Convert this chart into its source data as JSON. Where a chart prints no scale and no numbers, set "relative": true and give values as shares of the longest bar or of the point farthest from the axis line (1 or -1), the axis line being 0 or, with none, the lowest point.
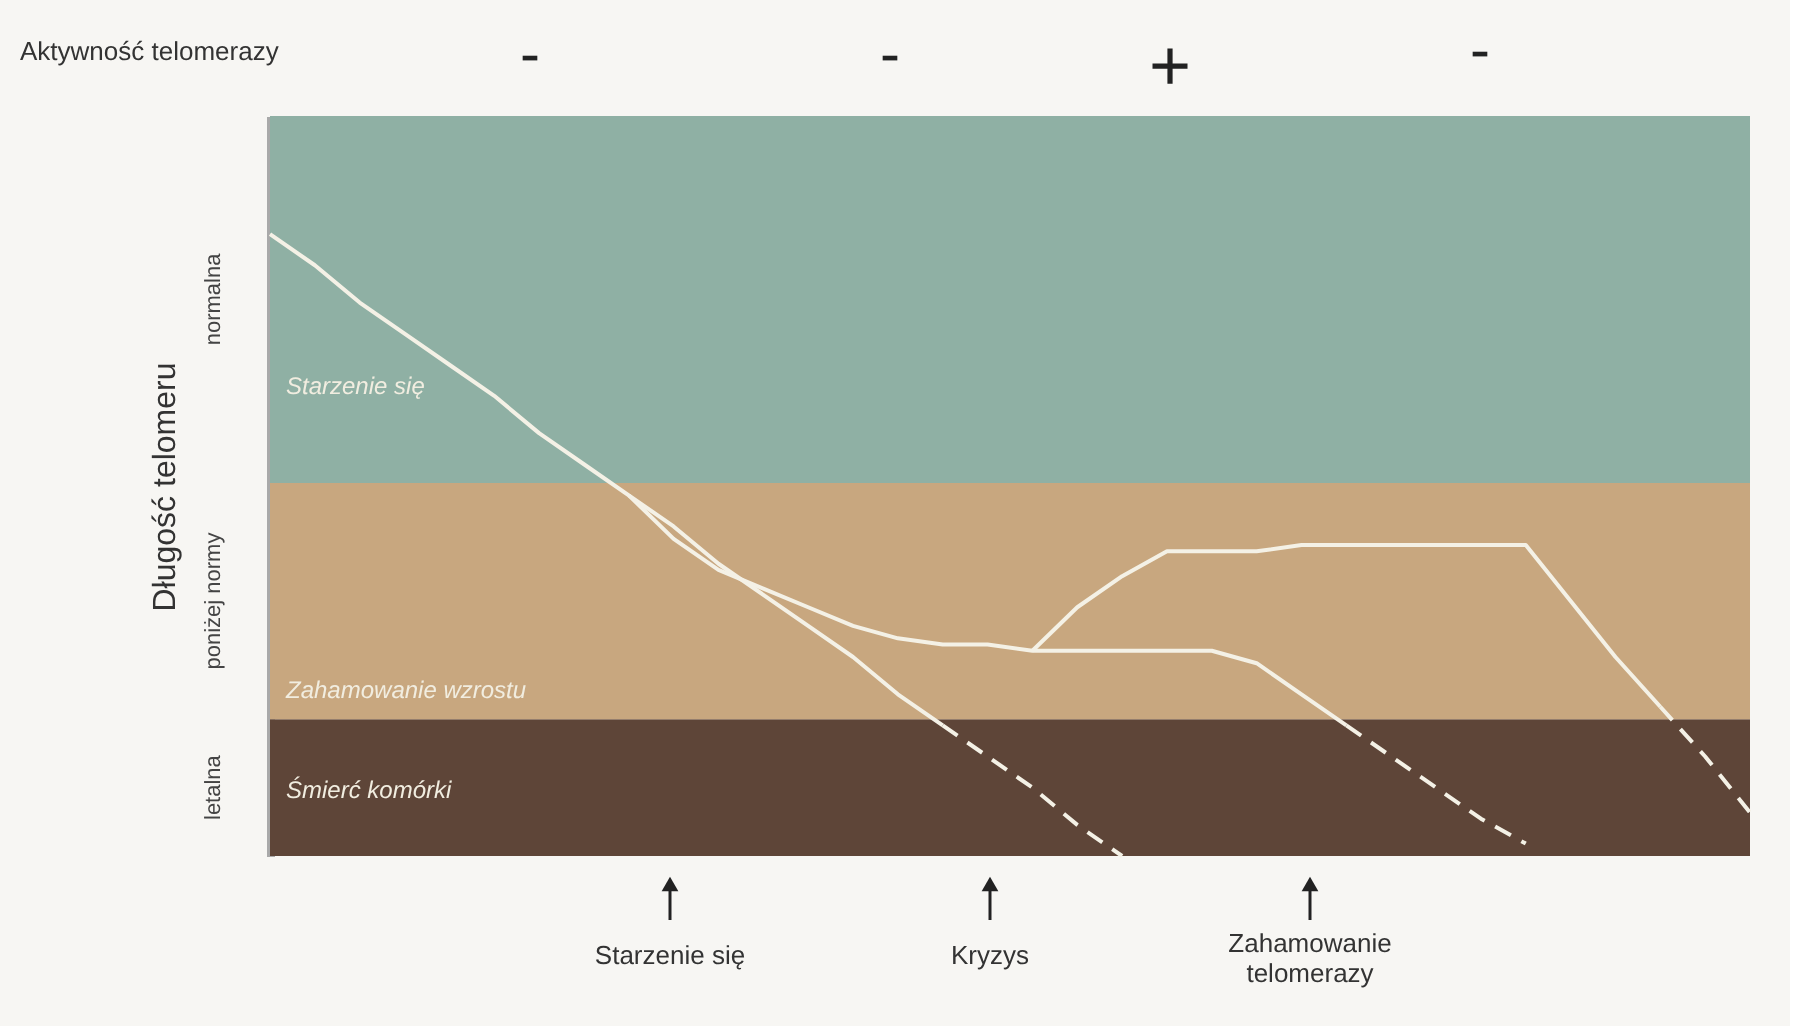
{
  "chart_data": {
    "type": "line",
    "relative": true,
    "ylabel": "Długość telomeru",
    "categories": [
      null,
      null,
      null,
      null,
      null,
      null,
      null,
      null,
      null,
      null,
      null,
      null,
      null,
      null,
      null,
      null,
      null,
      null,
      null,
      null,
      null,
      null,
      null,
      null,
      null,
      null,
      null,
      null,
      null,
      null,
      null,
      null,
      null,
      null
    ],
    "series": [
      {
        "color": "#f4f1e6",
        "line_style": "solid",
        "values": [
          1.0,
          0.95,
          0.89,
          0.84,
          0.79,
          0.74,
          0.68,
          0.63,
          0.58,
          0.53,
          0.47,
          0.42,
          0.37,
          0.32,
          0.26,
          0.21,
          null,
          null,
          null,
          null,
          null,
          null,
          null,
          null,
          null,
          null,
          null,
          null,
          null,
          null,
          null,
          null,
          null,
          null
        ]
      },
      {
        "color": "#f4f1e6",
        "line_style": "dashed",
        "values": [
          null,
          null,
          null,
          null,
          null,
          null,
          null,
          null,
          null,
          null,
          null,
          null,
          null,
          null,
          null,
          0.21,
          0.16,
          0.11,
          0.05,
          0.0,
          null,
          null,
          null,
          null,
          null,
          null,
          null,
          null,
          null,
          null,
          null,
          null,
          null,
          null
        ]
      },
      {
        "color": "#f4f1e6",
        "line_style": "solid",
        "values": [
          null,
          null,
          null,
          null,
          null,
          null,
          null,
          null,
          0.58,
          0.51,
          0.46,
          0.43,
          0.4,
          0.37,
          0.35,
          0.34,
          0.34,
          0.33,
          0.33,
          0.33,
          0.33,
          0.33,
          0.31,
          0.26,
          0.21,
          null,
          null,
          null,
          null,
          null,
          null,
          null,
          null,
          null
        ]
      },
      {
        "color": "#f4f1e6",
        "line_style": "dashed",
        "values": [
          null,
          null,
          null,
          null,
          null,
          null,
          null,
          null,
          null,
          null,
          null,
          null,
          null,
          null,
          null,
          null,
          null,
          null,
          null,
          null,
          null,
          null,
          null,
          null,
          0.21,
          0.16,
          0.11,
          0.06,
          0.02,
          null,
          null,
          null,
          null,
          null
        ]
      },
      {
        "color": "#f4f1e6",
        "line_style": "solid",
        "values": [
          null,
          null,
          null,
          null,
          null,
          null,
          null,
          null,
          null,
          null,
          null,
          null,
          null,
          null,
          null,
          null,
          null,
          0.33,
          0.4,
          0.45,
          0.49,
          0.49,
          0.49,
          0.5,
          0.5,
          0.5,
          0.5,
          0.5,
          0.5,
          0.41,
          0.32,
          0.24,
          null,
          null
        ]
      },
      {
        "color": "#f4f1e6",
        "line_style": "dashed",
        "values": [
          null,
          null,
          null,
          null,
          null,
          null,
          null,
          null,
          null,
          null,
          null,
          null,
          null,
          null,
          null,
          null,
          null,
          null,
          null,
          null,
          null,
          null,
          null,
          null,
          null,
          null,
          null,
          null,
          null,
          null,
          null,
          0.24,
          0.16,
          0.07
        ]
      }
    ],
    "bands": [
      {
        "axis": "y",
        "from": 0,
        "to": 0.22,
        "label": "letalna",
        "color": "#5e4538"
      },
      {
        "axis": "y",
        "from": 0.22,
        "to": 0.6,
        "label": "poniżej normy",
        "color": "#c8a77f"
      },
      {
        "axis": "y",
        "from": 0.6,
        "to": 1.19,
        "label": "normalna",
        "color": "#8fb0a4"
      }
    ],
    "annotations": [
      "Aktywność telomerazy",
      "-",
      "-",
      "+",
      "-",
      "Starzenie się",
      "Zahamowanie wzrostu",
      "Śmierć komórki",
      "Starzenie się",
      "Kryzys",
      "Zahamowanie telomerazy"
    ],
    "grid": false
  }
}
